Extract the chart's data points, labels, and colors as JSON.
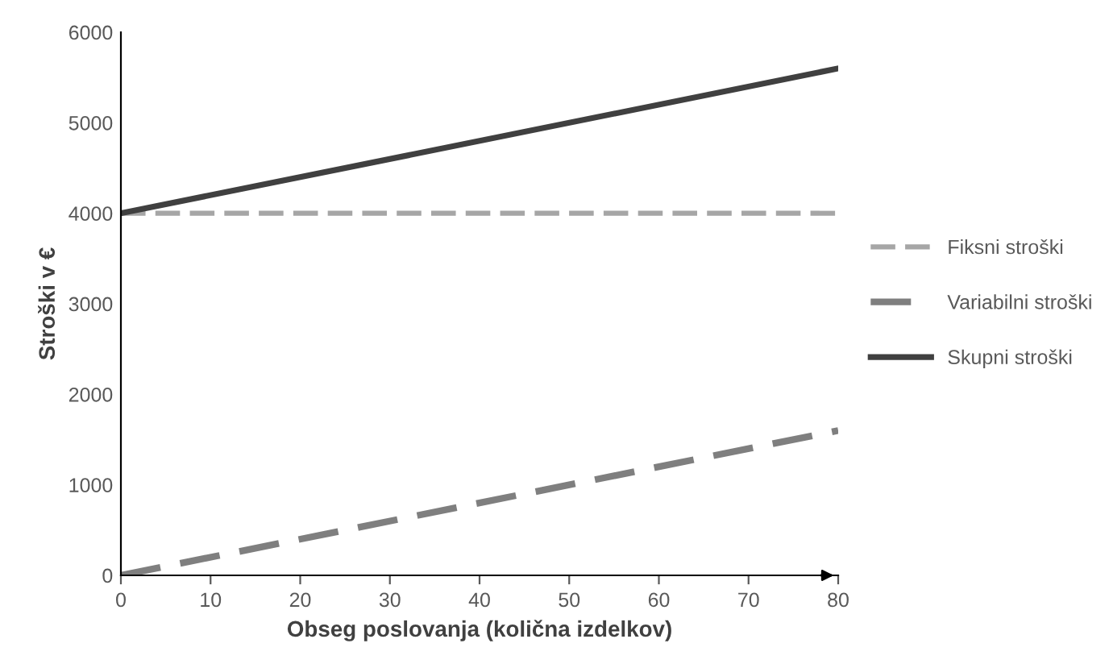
{
  "chart_data": {
    "type": "line",
    "xlabel": "Obseg poslovanja (količna izdelkov)",
    "ylabel": "Stroški v €",
    "x": [
      0,
      80
    ],
    "series": [
      {
        "name": "Fiksni stroški",
        "color": "#a6a6a6",
        "values": [
          4000,
          4000
        ],
        "line_style": "dashed"
      },
      {
        "name": "Variabilni stroški",
        "color": "#7f7f7f",
        "values": [
          0,
          1600
        ],
        "line_style": "dashed"
      },
      {
        "name": "Skupni stroški",
        "color": "#404040",
        "values": [
          4000,
          5600
        ],
        "line_style": "solid"
      }
    ],
    "xlim": [
      0,
      80
    ],
    "xticks": [
      0,
      10,
      20,
      30,
      40,
      50,
      60,
      70,
      80
    ],
    "ylim": [
      0,
      6000
    ],
    "yticks": [
      0,
      1000,
      2000,
      3000,
      4000,
      5000,
      6000
    ],
    "grid": false,
    "legend": "right",
    "marker": "none"
  }
}
